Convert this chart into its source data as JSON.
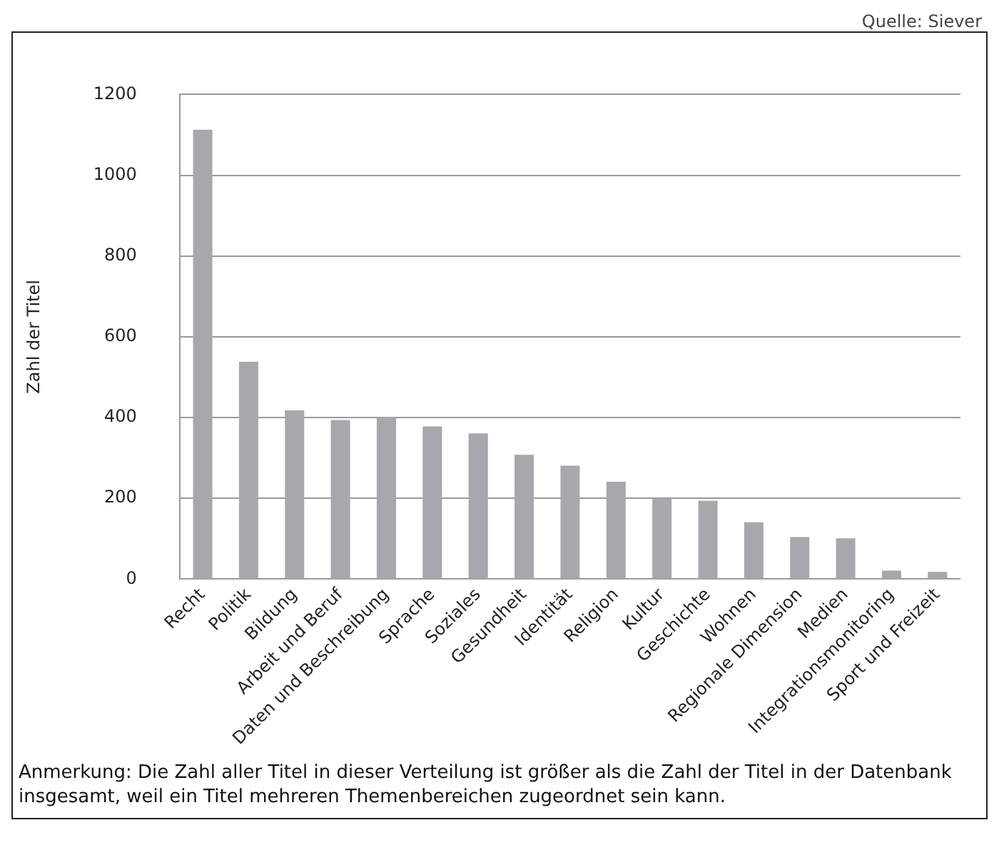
{
  "chart_data": {
    "type": "bar",
    "ylabel": "Zahl der Titel",
    "categories": [
      "Recht",
      "Politik",
      "Bildung",
      "Arbeit und Beruf",
      "Daten und Beschreibung",
      "Sprache",
      "Soziales",
      "Gesundheit",
      "Identität",
      "Religion",
      "Kultur",
      "Geschichte",
      "Wohnen",
      "Regionale Dimension",
      "Medien",
      "Integrationsmonitoring",
      "Sport und Freizeit"
    ],
    "values": [
      1113,
      538,
      418,
      394,
      401,
      378,
      361,
      308,
      281,
      241,
      200,
      194,
      141,
      104,
      101,
      21,
      18
    ],
    "color": "#a7a8ab",
    "ylim": [
      0,
      1200
    ],
    "yticks": [
      0,
      200,
      400,
      600,
      800,
      1000,
      1200
    ],
    "grid": "y",
    "legend": false,
    "annotations": [
      "Quelle: Siever",
      "Anmerkung: Die Zahl aller Titel in dieser Verteilung ist größer als die Zahl der Titel in der Datenbank insgesamt, weil ein Titel mehreren Themenbereichen zugeordnet sein kann."
    ]
  }
}
